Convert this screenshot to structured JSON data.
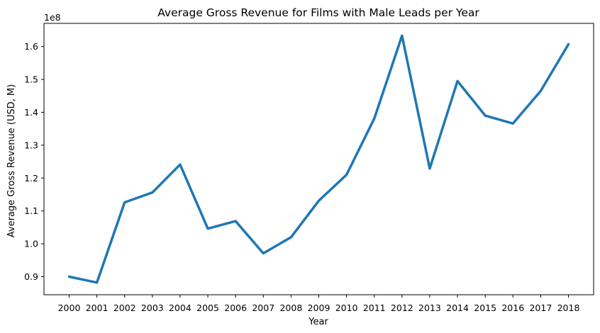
{
  "chart_data": {
    "type": "line",
    "title": "Average Gross Revenue for Films with Male Leads per Year",
    "xlabel": "Year",
    "ylabel": "Average Gross Revenue (USD, M)",
    "y_offset_label": "1e8",
    "categories": [
      "2000",
      "2001",
      "2002",
      "2003",
      "2004",
      "2005",
      "2006",
      "2007",
      "2008",
      "2009",
      "2010",
      "2011",
      "2012",
      "2013",
      "2014",
      "2015",
      "2016",
      "2017",
      "2018"
    ],
    "series": [
      {
        "name": "Average Gross Revenue",
        "color": "#1f77b4",
        "values": [
          0.9,
          0.882,
          1.126,
          1.156,
          1.241,
          1.046,
          1.069,
          0.971,
          1.02,
          1.131,
          1.21,
          1.381,
          1.633,
          1.229,
          1.495,
          1.39,
          1.366,
          1.465,
          1.607
        ]
      }
    ],
    "yticks": [
      0.9,
      1.0,
      1.1,
      1.2,
      1.3,
      1.4,
      1.5,
      1.6
    ],
    "ytick_labels": [
      "0.9",
      "1.0",
      "1.1",
      "1.2",
      "1.3",
      "1.4",
      "1.5",
      "1.6"
    ],
    "ylim": [
      0.845,
      1.6705
    ],
    "grid": false,
    "legend": false
  }
}
